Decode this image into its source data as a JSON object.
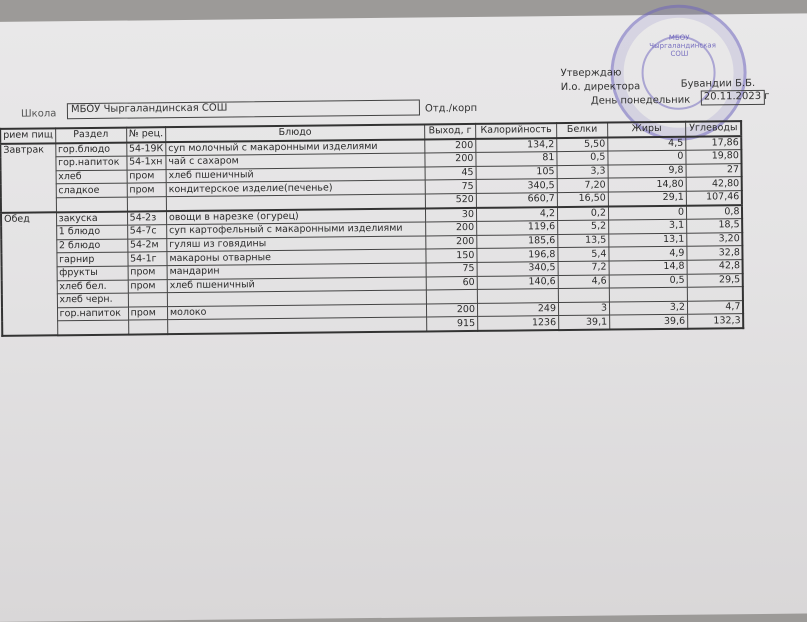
{
  "header": {
    "approve_label": "Утверждаю",
    "director_label": "И.о. директора",
    "director_name": "Бувандии Б.Б.",
    "day_label": "День понедельник",
    "date": "20.11.2023 г",
    "school_label": "Школа",
    "school_value": "МБОУ Чыргаландинская СОШ",
    "dept_label": "Отд./корп",
    "stamp_text": "МБОУ Чыргаландинская СОШ"
  },
  "table": {
    "columns": [
      "рием пищ",
      "Раздел",
      "№ рец.",
      "Блюдо",
      "Выход, г",
      "Калорийность",
      "Белки",
      "Жиры",
      "Углеводы"
    ],
    "breakfast": {
      "meal": "Завтрак",
      "rows": [
        [
          "гор.блюдо",
          "54-19К",
          "суп молочный с макаронными изделиями",
          "200",
          "134,2",
          "5,50",
          "4,5",
          "17,86"
        ],
        [
          "гор.напиток",
          "54-1хн",
          "чай с сахаром",
          "200",
          "81",
          "0,5",
          "0",
          "19,80"
        ],
        [
          "хлеб",
          "пром",
          "хлеб пшеничный",
          "45",
          "105",
          "3,3",
          "9,8",
          "27"
        ],
        [
          "сладкое",
          "пром",
          "кондитерское изделие(печенье)",
          "75",
          "340,5",
          "7,20",
          "14,80",
          "42,80"
        ],
        [
          "",
          "",
          "",
          "520",
          "660,7",
          "16,50",
          "29,1",
          "107,46"
        ]
      ]
    },
    "lunch": {
      "meal": "Обед",
      "rows": [
        [
          "закуска",
          "54-2з",
          "овощи в нарезке (огурец)",
          "30",
          "4,2",
          "0,2",
          "0",
          "0,8"
        ],
        [
          "1 блюдо",
          "54-7с",
          "суп картофельный с макаронными изделиями",
          "200",
          "119,6",
          "5,2",
          "3,1",
          "18,5"
        ],
        [
          "2 блюдо",
          "54-2м",
          "гуляш из говядины",
          "200",
          "185,6",
          "13,5",
          "13,1",
          "3,20"
        ],
        [
          "гарнир",
          "54-1г",
          "макароны отварные",
          "150",
          "196,8",
          "5,4",
          "4,9",
          "32,8"
        ],
        [
          "фрукты",
          "пром",
          "мандарин",
          "75",
          "340,5",
          "7,2",
          "14,8",
          "42,8"
        ],
        [
          "хлеб бел.",
          "пром",
          "хлеб пшеничный",
          "60",
          "140,6",
          "4,6",
          "0,5",
          "29,5"
        ],
        [
          "хлеб черн.",
          "",
          "",
          "",
          "",
          "",
          "",
          ""
        ],
        [
          "гор.напиток",
          "пром",
          "молоко",
          "200",
          "249",
          "3",
          "3,2",
          "4,7"
        ],
        [
          "",
          "",
          "",
          "915",
          "1236",
          "39,1",
          "39,6",
          "132,3"
        ]
      ]
    }
  }
}
